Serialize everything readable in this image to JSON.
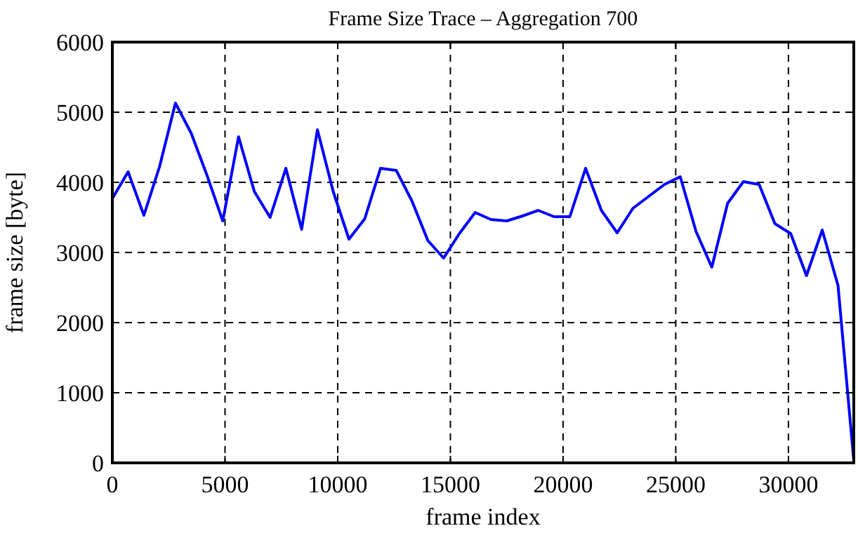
{
  "chart_data": {
    "type": "line",
    "title": "Frame Size Trace – Aggregation 700",
    "xlabel": "frame index",
    "ylabel": "frame size [byte]",
    "x": [
      0,
      700,
      1400,
      2100,
      2800,
      3500,
      4200,
      4900,
      5600,
      6300,
      7000,
      7700,
      8400,
      9100,
      9800,
      10500,
      11200,
      11900,
      12600,
      13300,
      14000,
      14700,
      15400,
      16100,
      16800,
      17500,
      18200,
      18900,
      19600,
      20300,
      21000,
      21700,
      22400,
      23100,
      23800,
      24500,
      25200,
      25900,
      26600,
      27300,
      28000,
      28700,
      29400,
      30100,
      30800,
      31500,
      32200,
      32900
    ],
    "series": [
      {
        "color": "#0000ff",
        "values": [
          3770,
          4150,
          3530,
          4230,
          5130,
          4700,
          4100,
          3450,
          4650,
          3870,
          3500,
          4200,
          3330,
          4750,
          3870,
          3190,
          3480,
          4200,
          4170,
          3730,
          3170,
          2920,
          3270,
          3570,
          3470,
          3450,
          3520,
          3600,
          3510,
          3510,
          4200,
          3600,
          3280,
          3630,
          3800,
          3970,
          4080,
          3300,
          2790,
          3700,
          4010,
          3970,
          3410,
          3270,
          2670,
          3320,
          2530,
          30
        ]
      }
    ],
    "xlim": [
      0,
      32900
    ],
    "xticks": [
      0,
      5000,
      10000,
      15000,
      20000,
      25000,
      30000
    ],
    "ylim": [
      0,
      6000
    ],
    "yticks": [
      0,
      1000,
      2000,
      3000,
      4000,
      5000,
      6000
    ],
    "grid": true,
    "line_style": "solid"
  }
}
